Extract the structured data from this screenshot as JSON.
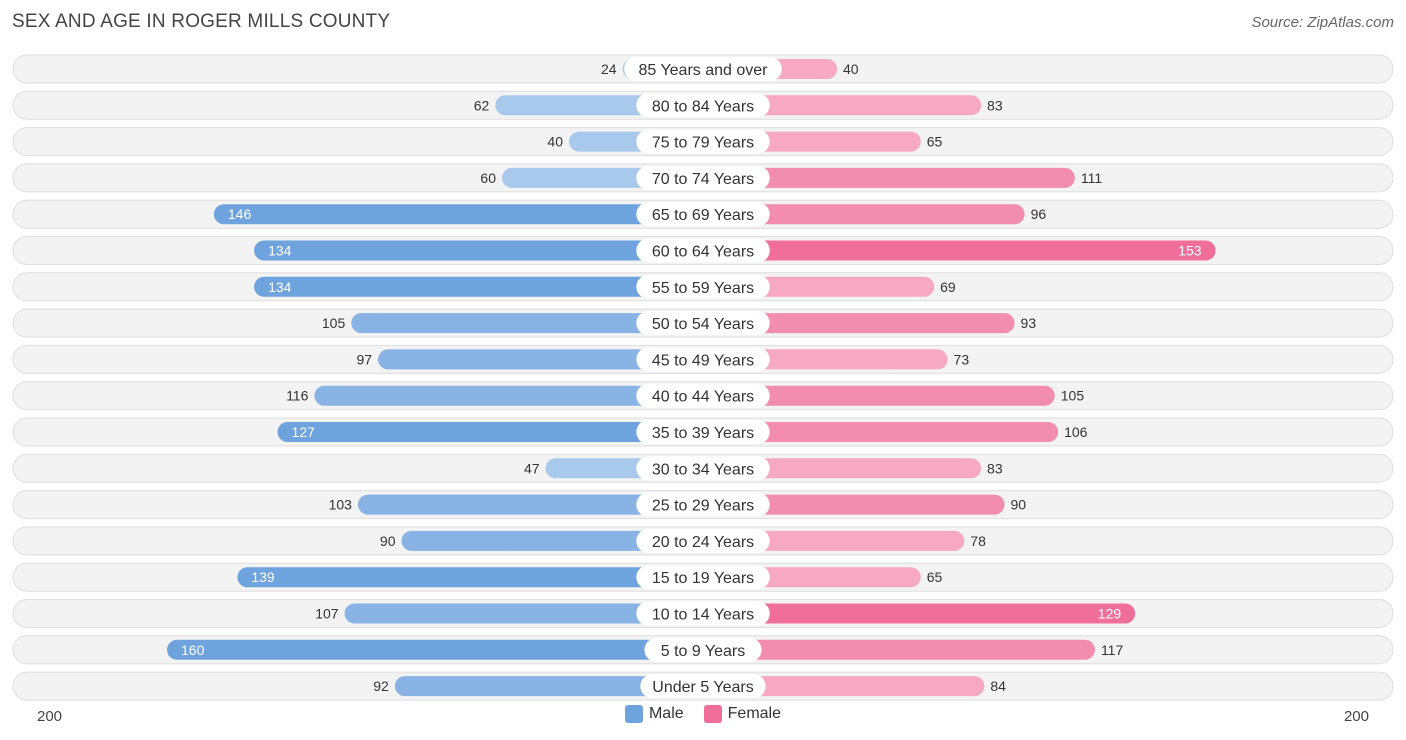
{
  "header": {
    "title": "SEX AND AGE IN ROGER MILLS COUNTY",
    "source": "Source: ZipAtlas.com"
  },
  "colors": {
    "male": "#6ea3dd",
    "male_light": "#a9c9ec",
    "female": "#f06f9a",
    "female_light": "#f7a8c3"
  },
  "chart_data": {
    "type": "bar",
    "orientation": "horizontal-diverging",
    "title": "SEX AND AGE IN ROGER MILLS COUNTY",
    "axis_max": 200,
    "axis_left_label": "200",
    "axis_right_label": "200",
    "categories": [
      "85 Years and over",
      "80 to 84 Years",
      "75 to 79 Years",
      "70 to 74 Years",
      "65 to 69 Years",
      "60 to 64 Years",
      "55 to 59 Years",
      "50 to 54 Years",
      "45 to 49 Years",
      "40 to 44 Years",
      "35 to 39 Years",
      "30 to 34 Years",
      "25 to 29 Years",
      "20 to 24 Years",
      "15 to 19 Years",
      "10 to 14 Years",
      "5 to 9 Years",
      "Under 5 Years"
    ],
    "series": [
      {
        "name": "Male",
        "values": [
          24,
          62,
          40,
          60,
          146,
          134,
          134,
          105,
          97,
          116,
          127,
          47,
          103,
          90,
          139,
          107,
          160,
          92
        ]
      },
      {
        "name": "Female",
        "values": [
          40,
          83,
          65,
          111,
          96,
          153,
          69,
          93,
          73,
          105,
          106,
          83,
          90,
          78,
          65,
          129,
          117,
          84
        ]
      }
    ],
    "legend": [
      "Male",
      "Female"
    ],
    "legend_position": "bottom-center"
  }
}
